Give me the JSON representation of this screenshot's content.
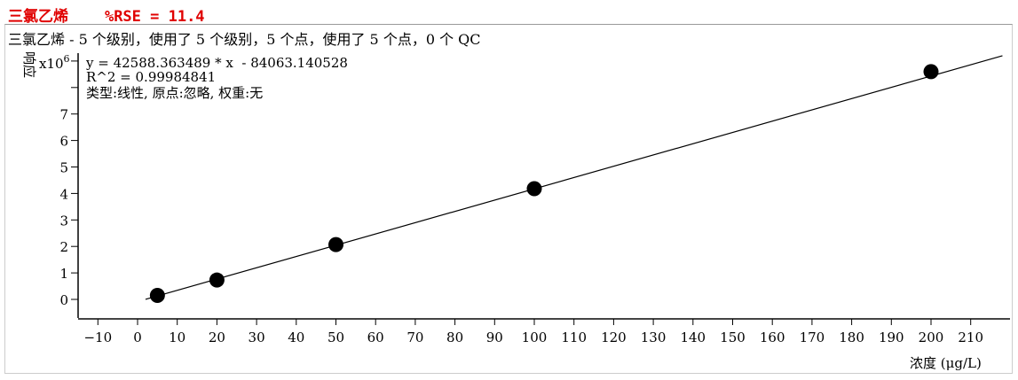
{
  "header": {
    "compound": "三氯乙烯",
    "rse": "%RSE = 11.4"
  },
  "chart_data": {
    "type": "scatter",
    "title": "三氯乙烯 - 5 个级别，使用了 5 个级别，5 个点，使用了 5 个点，0 个 QC",
    "equation": "y = 42588.363489 * x  - 84063.140528",
    "r2": "R^2 = 0.99984841",
    "fit_info": "类型:线性, 原点:忽略, 权重:无",
    "xlabel": "浓度 (μg/L)",
    "ylabel": "响应",
    "y_multiplier": "x10",
    "y_exponent": "6",
    "xlim": [
      -15,
      222
    ],
    "ylim": [
      -0.7,
      9.3
    ],
    "x_ticks": [
      -10,
      0,
      10,
      20,
      30,
      40,
      50,
      60,
      70,
      80,
      90,
      100,
      110,
      120,
      130,
      140,
      150,
      160,
      170,
      180,
      190,
      200,
      210
    ],
    "y_ticks": [
      0,
      1,
      2,
      3,
      4,
      5,
      6,
      7
    ],
    "y_unlabeled_ticks": [
      8,
      9
    ],
    "points": [
      {
        "x": 5,
        "y": 0.15
      },
      {
        "x": 20,
        "y": 0.73
      },
      {
        "x": 50,
        "y": 2.07
      },
      {
        "x": 100,
        "y": 4.18
      },
      {
        "x": 200,
        "y": 8.6
      }
    ],
    "fit": {
      "slope": 42588.363489,
      "intercept": -84063.140528,
      "x_range": [
        2,
        218
      ]
    },
    "colors": {
      "title": "#e00000",
      "points": "#000000",
      "line": "#000000"
    }
  }
}
